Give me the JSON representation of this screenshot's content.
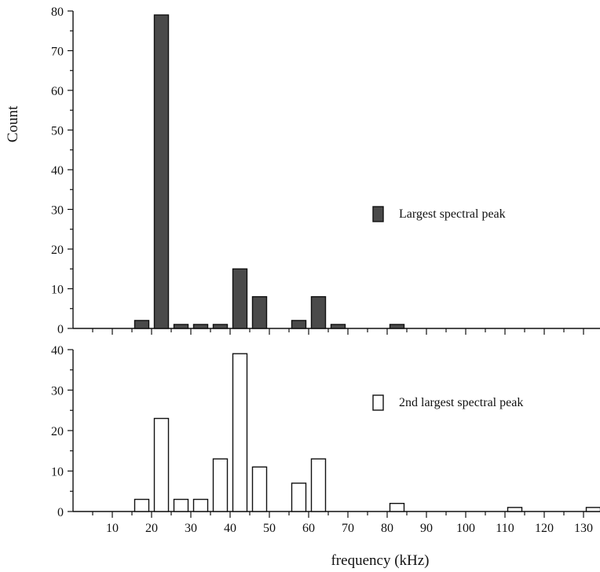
{
  "chart_data": [
    {
      "type": "bar",
      "ylabel": "Count",
      "xlabel": "",
      "ylim": [
        0,
        80
      ],
      "yticks": [
        0,
        10,
        20,
        30,
        40,
        50,
        60,
        70,
        80
      ],
      "xlim": [
        0,
        134
      ],
      "series": [
        {
          "name": "Largest spectral peak",
          "color": "#4a4a4a",
          "x": [
            17.5,
            22.5,
            27.5,
            32.5,
            37.5,
            42.5,
            47.5,
            57.5,
            62.5,
            67.5,
            82.5
          ],
          "values": [
            2,
            79,
            1,
            1,
            1,
            15,
            8,
            2,
            8,
            1,
            1
          ]
        }
      ],
      "bar_width": 3.6,
      "legend_position": "right"
    },
    {
      "type": "bar",
      "ylabel": "",
      "xlabel": "frequency (kHz)",
      "ylim": [
        0,
        40
      ],
      "yticks": [
        0,
        10,
        20,
        30,
        40
      ],
      "xlim": [
        0,
        134
      ],
      "xticks": [
        10,
        20,
        30,
        40,
        50,
        60,
        70,
        80,
        90,
        100,
        110,
        120,
        130
      ],
      "series": [
        {
          "name": "2nd largest spectral peak",
          "color": "#ffffff",
          "x": [
            17.5,
            22.5,
            27.5,
            32.5,
            37.5,
            42.5,
            47.5,
            57.5,
            62.5,
            82.5,
            112.5,
            132.5
          ],
          "values": [
            3,
            23,
            3,
            3,
            13,
            39,
            11,
            7,
            13,
            2,
            1,
            1
          ]
        }
      ],
      "bar_width": 3.6,
      "legend_position": "right"
    }
  ]
}
